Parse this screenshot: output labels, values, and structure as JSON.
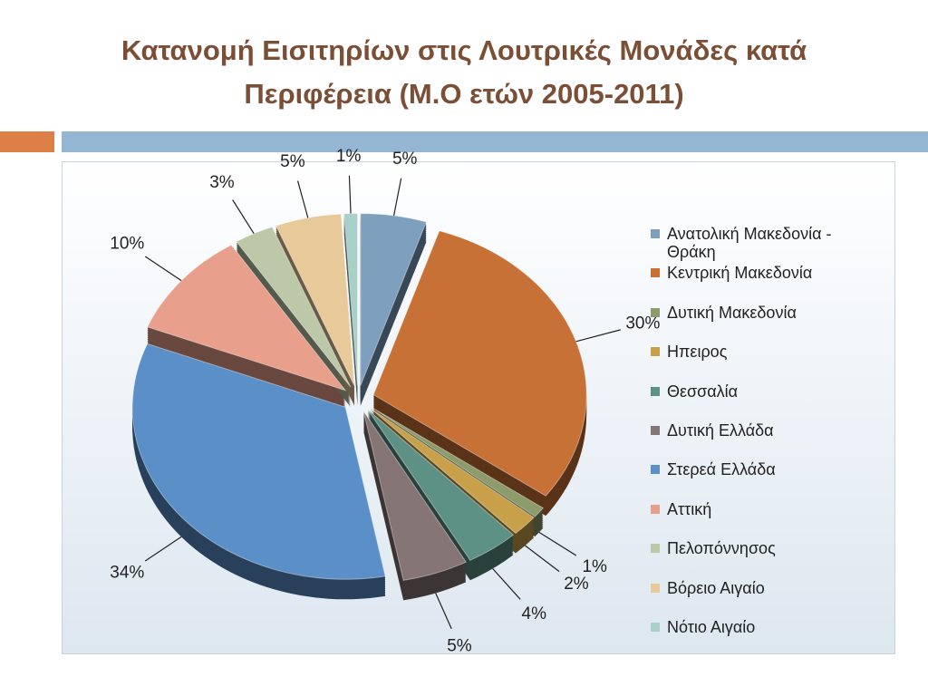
{
  "chart_data": {
    "type": "pie",
    "title": "Κατανομή Εισιτηρίων στις Λουτρικές Μονάδες κατά Περιφέρεια (Μ.Ο ετών 2005-2011)",
    "categories": [
      "Ανατολική Μακεδονία - Θράκη",
      "Κεντρική Μακεδονία",
      "Δυτική Μακεδονία",
      "Ηπειρος",
      "Θεσσαλία",
      "Δυτική Ελλάδα",
      "Στερεά Ελλάδα",
      "Αττική",
      "Πελοπόννησος",
      "Βόρειο Αιγαίο",
      "Νότιο Αιγαίο"
    ],
    "values": [
      5,
      30,
      1,
      2,
      4,
      5,
      34,
      10,
      3,
      5,
      1
    ],
    "value_labels": [
      "5%",
      "30%",
      "1%",
      "2%",
      "4%",
      "5%",
      "34%",
      "10%",
      "3%",
      "5%",
      "1%"
    ],
    "colors": [
      "#7f9fbf",
      "#c87137",
      "#8d9b6a",
      "#c9a04a",
      "#5e9185",
      "#857575",
      "#5b8fc7",
      "#e8a08c",
      "#bcc8a8",
      "#e8c99a",
      "#a8cfc8"
    ],
    "legend": "right"
  }
}
